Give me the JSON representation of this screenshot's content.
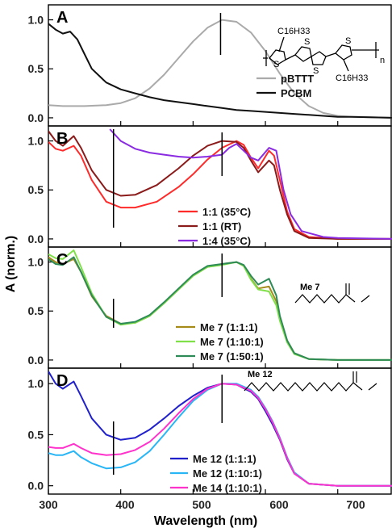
{
  "figure": {
    "xlabel": "Wavelength (nm)",
    "ylabel": "A (norm.)",
    "x_tick_labels": [
      "300",
      "400",
      "500",
      "600",
      "700"
    ],
    "y_tick_labels": [
      "0.0",
      "0.5",
      "1.0"
    ]
  },
  "panels": [
    {
      "label": "A"
    },
    {
      "label": "B"
    },
    {
      "label": "C",
      "structure_label": "Me 7"
    },
    {
      "label": "D",
      "structure_label": "Me 12"
    }
  ],
  "polymer_structure": {
    "substituent_top": "C16H33",
    "substituent_bottom": "C16H33",
    "ring_atom": "S",
    "repeat_index": "n"
  },
  "chart_data": [
    {
      "type": "line",
      "panel": "A",
      "xlim": [
        300,
        775
      ],
      "ylim": [
        -0.05,
        1.12
      ],
      "grid": false,
      "legend_position": "center-right",
      "marker_x": [
        538
      ],
      "series": [
        {
          "name": "pBTTT",
          "color": "#aaaaaa",
          "x": [
            300,
            320,
            350,
            380,
            400,
            420,
            440,
            460,
            480,
            500,
            520,
            540,
            560,
            580,
            600,
            620,
            640,
            660,
            680,
            700,
            720,
            775
          ],
          "y": [
            0.13,
            0.12,
            0.12,
            0.13,
            0.15,
            0.2,
            0.3,
            0.44,
            0.61,
            0.78,
            0.92,
            1.0,
            0.98,
            0.87,
            0.68,
            0.45,
            0.25,
            0.12,
            0.05,
            0.02,
            0.01,
            0.0
          ]
        },
        {
          "name": "PCBM",
          "color": "#111111",
          "x": [
            300,
            310,
            320,
            330,
            340,
            350,
            360,
            380,
            400,
            420,
            440,
            460,
            480,
            500,
            520,
            540,
            560,
            580,
            600,
            620,
            640,
            660,
            680,
            700,
            720,
            775
          ],
          "y": [
            0.96,
            0.9,
            0.86,
            0.88,
            0.8,
            0.65,
            0.5,
            0.36,
            0.29,
            0.25,
            0.21,
            0.18,
            0.16,
            0.14,
            0.12,
            0.1,
            0.08,
            0.07,
            0.06,
            0.05,
            0.04,
            0.03,
            0.02,
            0.01,
            0.01,
            0.0
          ]
        }
      ]
    },
    {
      "type": "line",
      "panel": "B",
      "xlim": [
        300,
        775
      ],
      "ylim": [
        -0.05,
        1.12
      ],
      "grid": false,
      "legend_position": "bottom-right",
      "marker_x": [
        390,
        540
      ],
      "series": [
        {
          "name": "1:1 (35°C)",
          "color": "#ff2a2a",
          "x": [
            300,
            310,
            320,
            335,
            345,
            360,
            380,
            400,
            420,
            450,
            480,
            500,
            520,
            540,
            560,
            570,
            580,
            590,
            605,
            612,
            620,
            630,
            640,
            660,
            700,
            775
          ],
          "y": [
            0.99,
            0.92,
            0.9,
            0.95,
            0.85,
            0.6,
            0.38,
            0.32,
            0.32,
            0.38,
            0.53,
            0.66,
            0.81,
            0.93,
            1.0,
            0.96,
            0.83,
            0.72,
            0.9,
            0.85,
            0.6,
            0.28,
            0.1,
            0.02,
            0.0,
            0.0
          ]
        },
        {
          "name": "1:1 (RT)",
          "color": "#8b1a1a",
          "x": [
            300,
            310,
            320,
            335,
            345,
            360,
            380,
            400,
            420,
            450,
            480,
            500,
            520,
            540,
            560,
            570,
            580,
            590,
            605,
            612,
            620,
            630,
            640,
            660,
            700,
            775
          ],
          "y": [
            1.1,
            1.0,
            0.95,
            1.05,
            0.93,
            0.7,
            0.5,
            0.44,
            0.45,
            0.55,
            0.72,
            0.85,
            0.95,
            1.0,
            0.99,
            0.93,
            0.8,
            0.68,
            0.8,
            0.75,
            0.5,
            0.25,
            0.08,
            0.01,
            0.0,
            0.0
          ]
        },
        {
          "name": "1:4 (35°C)",
          "color": "#8a2be2",
          "x": [
            385,
            400,
            420,
            440,
            460,
            480,
            500,
            520,
            540,
            550,
            560,
            570,
            580,
            590,
            605,
            615,
            625,
            635,
            650,
            680,
            700,
            775
          ],
          "y": [
            1.12,
            1.0,
            0.92,
            0.88,
            0.86,
            0.84,
            0.83,
            0.84,
            0.86,
            0.93,
            0.97,
            0.9,
            0.83,
            0.8,
            0.93,
            0.9,
            0.5,
            0.25,
            0.08,
            0.02,
            0.01,
            0.0
          ]
        }
      ]
    },
    {
      "type": "line",
      "panel": "C",
      "xlim": [
        300,
        775
      ],
      "ylim": [
        -0.05,
        1.12
      ],
      "grid": false,
      "legend_position": "bottom-right",
      "marker_x": [
        390,
        540
      ],
      "series": [
        {
          "name": "Me 7 (1:1:1)",
          "color": "#a68a1a",
          "x": [
            300,
            310,
            320,
            335,
            345,
            360,
            380,
            400,
            420,
            440,
            460,
            480,
            500,
            520,
            540,
            560,
            570,
            580,
            590,
            605,
            615,
            620,
            630,
            640,
            660,
            700,
            775
          ],
          "y": [
            1.05,
            1.0,
            0.98,
            1.03,
            0.9,
            0.65,
            0.45,
            0.37,
            0.38,
            0.45,
            0.58,
            0.72,
            0.86,
            0.95,
            0.98,
            1.0,
            0.96,
            0.83,
            0.73,
            0.75,
            0.6,
            0.42,
            0.2,
            0.07,
            0.01,
            0.0,
            0.0
          ]
        },
        {
          "name": "Me 7 (1:10:1)",
          "color": "#7fe04a",
          "x": [
            300,
            310,
            320,
            335,
            345,
            360,
            380,
            400,
            420,
            440,
            460,
            480,
            500,
            520,
            540,
            560,
            570,
            580,
            590,
            605,
            615,
            620,
            630,
            640,
            660,
            700,
            775
          ],
          "y": [
            1.08,
            1.04,
            1.03,
            1.12,
            0.95,
            0.68,
            0.44,
            0.36,
            0.38,
            0.45,
            0.58,
            0.72,
            0.86,
            0.95,
            0.97,
            1.0,
            0.96,
            0.82,
            0.72,
            0.7,
            0.56,
            0.4,
            0.18,
            0.06,
            0.01,
            0.0,
            0.0
          ]
        },
        {
          "name": "Me 7 (1:50:1)",
          "color": "#2e8b57",
          "x": [
            300,
            310,
            320,
            335,
            345,
            360,
            380,
            400,
            420,
            440,
            460,
            480,
            500,
            520,
            540,
            560,
            570,
            580,
            590,
            605,
            615,
            620,
            630,
            640,
            660,
            700,
            775
          ],
          "y": [
            1.03,
            0.98,
            0.97,
            1.05,
            0.9,
            0.66,
            0.44,
            0.37,
            0.39,
            0.46,
            0.59,
            0.73,
            0.87,
            0.96,
            0.98,
            1.0,
            0.97,
            0.86,
            0.77,
            0.83,
            0.66,
            0.45,
            0.2,
            0.07,
            0.01,
            0.0,
            0.0
          ]
        }
      ]
    },
    {
      "type": "line",
      "panel": "D",
      "xlim": [
        300,
        775
      ],
      "ylim": [
        -0.05,
        1.12
      ],
      "grid": false,
      "legend_position": "bottom-right",
      "marker_x": [
        390,
        540
      ],
      "series": [
        {
          "name": "Me 12 (1:1:1)",
          "color": "#2020cc",
          "x": [
            300,
            310,
            320,
            335,
            345,
            360,
            380,
            400,
            420,
            440,
            460,
            480,
            500,
            520,
            540,
            560,
            580,
            590,
            600,
            610,
            620,
            630,
            640,
            660,
            700,
            775
          ],
          "y": [
            1.12,
            1.0,
            0.95,
            1.02,
            0.88,
            0.66,
            0.5,
            0.45,
            0.47,
            0.55,
            0.66,
            0.78,
            0.88,
            0.96,
            1.0,
            0.99,
            0.92,
            0.85,
            0.73,
            0.6,
            0.45,
            0.26,
            0.12,
            0.02,
            0.0,
            0.0
          ]
        },
        {
          "name": "Me 12 (1:10:1)",
          "color": "#29b6f6",
          "x": [
            300,
            310,
            320,
            335,
            345,
            360,
            380,
            400,
            420,
            440,
            460,
            480,
            500,
            520,
            540,
            560,
            580,
            590,
            600,
            610,
            620,
            630,
            640,
            660,
            700,
            775
          ],
          "y": [
            0.32,
            0.3,
            0.3,
            0.34,
            0.28,
            0.22,
            0.17,
            0.18,
            0.23,
            0.34,
            0.5,
            0.67,
            0.83,
            0.94,
            1.0,
            1.0,
            0.94,
            0.87,
            0.76,
            0.63,
            0.47,
            0.28,
            0.13,
            0.02,
            0.0,
            0.0
          ]
        },
        {
          "name": "Me 14 (1:10:1)",
          "color": "#ff33cc",
          "x": [
            300,
            310,
            320,
            335,
            345,
            360,
            380,
            400,
            420,
            440,
            460,
            480,
            500,
            520,
            540,
            560,
            580,
            590,
            600,
            610,
            620,
            630,
            640,
            660,
            700,
            775
          ],
          "y": [
            0.38,
            0.37,
            0.37,
            0.41,
            0.37,
            0.32,
            0.3,
            0.31,
            0.35,
            0.43,
            0.56,
            0.71,
            0.85,
            0.95,
            1.0,
            0.99,
            0.93,
            0.86,
            0.75,
            0.62,
            0.46,
            0.27,
            0.12,
            0.02,
            0.0,
            0.0
          ]
        }
      ]
    }
  ]
}
